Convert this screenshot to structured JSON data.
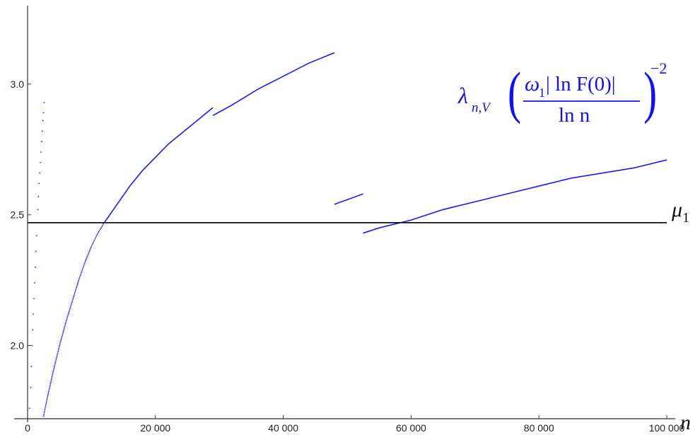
{
  "chart_data": {
    "type": "line",
    "xlabel": "n",
    "x_ticks": [
      {
        "value": 0,
        "label": "0"
      },
      {
        "value": 20000,
        "label": "20 000"
      },
      {
        "value": 40000,
        "label": "40 000"
      },
      {
        "value": 60000,
        "label": "60 000"
      },
      {
        "value": 80000,
        "label": "80 000"
      },
      {
        "value": 100000,
        "label": "100 000"
      }
    ],
    "y_ticks": [
      {
        "value": 2.0,
        "label": "2.0"
      },
      {
        "value": 2.5,
        "label": "2.5"
      },
      {
        "value": 3.0,
        "label": "3.0"
      }
    ],
    "xlim": [
      0,
      100000
    ],
    "ylim": [
      1.72,
      3.3
    ],
    "grid": false,
    "colors": {
      "series": "#1a1aff",
      "reference": "#000000",
      "axis": "#333333"
    },
    "reference_line": {
      "value": 2.47,
      "label": "μ1"
    },
    "formula_label": {
      "lambda": "λ",
      "lambda_sub": "n,V",
      "numerator_omega": "ω",
      "numerator_omega_sub": "1",
      "numerator_rest": "| ln F(0)|",
      "denominator": "ln n",
      "exponent": "−2"
    },
    "series": [
      {
        "style": "dotted",
        "points": [
          [
            300,
            1.76
          ],
          [
            500,
            1.84
          ],
          [
            600,
            1.92
          ],
          [
            700,
            2.0
          ],
          [
            800,
            2.06
          ],
          [
            900,
            2.12
          ],
          [
            1000,
            2.18
          ],
          [
            1100,
            2.24
          ],
          [
            1200,
            2.3
          ],
          [
            1300,
            2.36
          ],
          [
            1400,
            2.42
          ],
          [
            1500,
            2.47
          ],
          [
            1600,
            2.52
          ],
          [
            1700,
            2.57
          ],
          [
            1800,
            2.62
          ],
          [
            1900,
            2.66
          ],
          [
            2000,
            2.7
          ],
          [
            2100,
            2.74
          ],
          [
            2200,
            2.78
          ],
          [
            2300,
            2.82
          ],
          [
            2400,
            2.86
          ],
          [
            2500,
            2.89
          ],
          [
            2600,
            2.93
          ]
        ]
      },
      {
        "style": "dotted",
        "points": [
          [
            2500,
            1.73
          ],
          [
            3000,
            1.79
          ],
          [
            4000,
            1.9
          ],
          [
            5000,
            2.0
          ],
          [
            6000,
            2.09
          ],
          [
            7000,
            2.17
          ],
          [
            8000,
            2.25
          ],
          [
            9000,
            2.32
          ],
          [
            10000,
            2.38
          ],
          [
            11000,
            2.43
          ],
          [
            12000,
            2.47
          ]
        ]
      },
      {
        "style": "solid",
        "points": [
          [
            12000,
            2.47
          ],
          [
            14000,
            2.54
          ],
          [
            16000,
            2.61
          ],
          [
            18000,
            2.67
          ],
          [
            20000,
            2.72
          ],
          [
            22000,
            2.77
          ],
          [
            24000,
            2.81
          ],
          [
            26000,
            2.85
          ],
          [
            28000,
            2.89
          ],
          [
            29000,
            2.91
          ]
        ]
      },
      {
        "style": "solid",
        "points": [
          [
            29000,
            2.88
          ],
          [
            32000,
            2.92
          ],
          [
            36000,
            2.98
          ],
          [
            40000,
            3.03
          ],
          [
            44000,
            3.08
          ],
          [
            48000,
            3.12
          ]
        ]
      },
      {
        "style": "solid",
        "points": [
          [
            48000,
            2.54
          ],
          [
            52500,
            2.58
          ]
        ]
      },
      {
        "style": "solid",
        "points": [
          [
            52500,
            2.43
          ],
          [
            55000,
            2.45
          ],
          [
            60000,
            2.48
          ],
          [
            65000,
            2.52
          ],
          [
            70000,
            2.55
          ],
          [
            75000,
            2.58
          ],
          [
            80000,
            2.61
          ],
          [
            85000,
            2.64
          ],
          [
            90000,
            2.66
          ],
          [
            95000,
            2.68
          ],
          [
            100000,
            2.71
          ]
        ]
      }
    ]
  }
}
